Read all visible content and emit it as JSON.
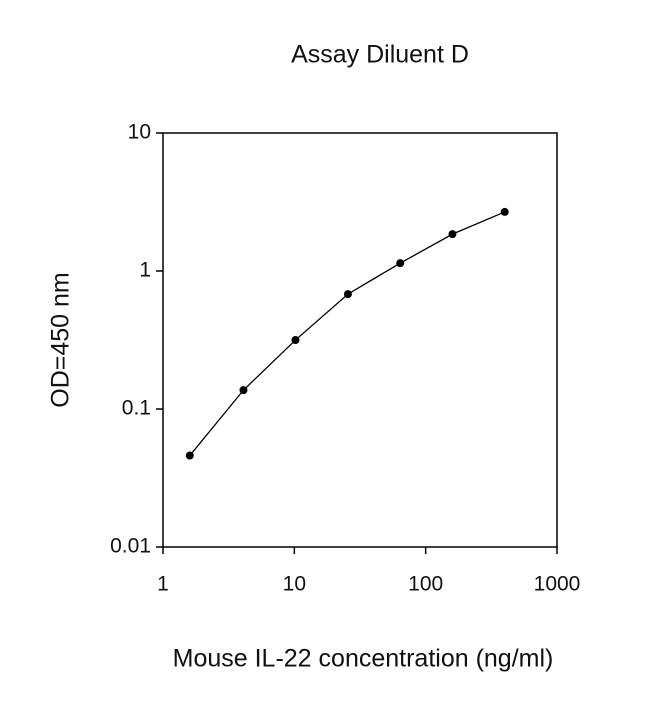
{
  "chart_data": {
    "type": "line",
    "title": "Assay Diluent D",
    "x_label": "Mouse IL-22 concentration (ng/ml)",
    "y_label": "OD=450 nm",
    "x": [
      1.6,
      4.1,
      10.2,
      25.6,
      64,
      160,
      400
    ],
    "series": [
      {
        "color": "#000000",
        "values": [
          0.046,
          0.137,
          0.316,
          0.68,
          1.14,
          1.85,
          2.68
        ]
      }
    ],
    "x_log": true,
    "y_log": true,
    "xlim": [
      1,
      1000
    ],
    "ylim": [
      0.01,
      10
    ],
    "xticks": [
      1,
      10,
      100,
      1000
    ],
    "yticks": [
      0.01,
      0.1,
      1,
      10
    ]
  }
}
